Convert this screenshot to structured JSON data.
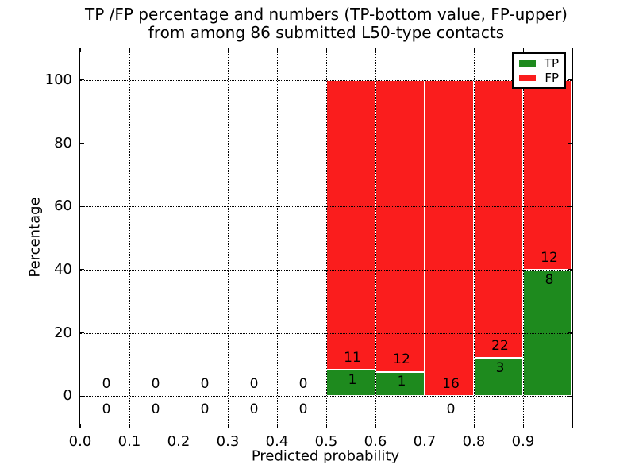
{
  "figure": {
    "title_line1": "TP /FP percentage and numbers (TP-bottom value, FP-upper)",
    "title_line2": "from among 86 submitted L50-type contacts",
    "xlabel": "Predicted probability",
    "ylabel": "Percentage"
  },
  "legend": {
    "entries": [
      {
        "label": "TP",
        "color": "#1e8a1e"
      },
      {
        "label": "FP",
        "color": "#fa1d1d"
      }
    ]
  },
  "colors": {
    "tp_green": "#1e8a1e",
    "fp_red": "#fa1d1d",
    "axis_black": "#000000",
    "background": "#ffffff"
  },
  "chart_data": {
    "type": "bar",
    "stacked": true,
    "title": "TP /FP percentage and numbers (TP-bottom value, FP-upper) from among 86 submitted L50-type contacts",
    "xlabel": "Predicted probability",
    "ylabel": "Percentage",
    "xlim": [
      0.0,
      1.0
    ],
    "ylim": [
      -10,
      110
    ],
    "x_tick_labels": [
      "0.0",
      "0.1",
      "0.2",
      "0.3",
      "0.4",
      "0.5",
      "0.6",
      "0.7",
      "0.8",
      "0.9"
    ],
    "x_tick_values": [
      0.0,
      0.1,
      0.2,
      0.3,
      0.4,
      0.5,
      0.6,
      0.7,
      0.8,
      0.9
    ],
    "y_tick_values": [
      0,
      20,
      40,
      60,
      80,
      100
    ],
    "grid": "dotted",
    "legend_position": "upper right",
    "total_contacts": 86,
    "series": [
      {
        "name": "TP",
        "color": "#1e8a1e"
      },
      {
        "name": "FP",
        "color": "#fa1d1d"
      }
    ],
    "bins": [
      {
        "x_range": [
          0.0,
          0.1
        ],
        "tp_count": 0,
        "fp_count": 0,
        "tp_pct": 0,
        "fp_pct": 0
      },
      {
        "x_range": [
          0.1,
          0.2
        ],
        "tp_count": 0,
        "fp_count": 0,
        "tp_pct": 0,
        "fp_pct": 0
      },
      {
        "x_range": [
          0.2,
          0.3
        ],
        "tp_count": 0,
        "fp_count": 0,
        "tp_pct": 0,
        "fp_pct": 0
      },
      {
        "x_range": [
          0.3,
          0.4
        ],
        "tp_count": 0,
        "fp_count": 0,
        "tp_pct": 0,
        "fp_pct": 0
      },
      {
        "x_range": [
          0.4,
          0.5
        ],
        "tp_count": 0,
        "fp_count": 0,
        "tp_pct": 0,
        "fp_pct": 0
      },
      {
        "x_range": [
          0.5,
          0.6
        ],
        "tp_count": 1,
        "fp_count": 11,
        "tp_pct": 8.33,
        "fp_pct": 91.67
      },
      {
        "x_range": [
          0.6,
          0.7
        ],
        "tp_count": 1,
        "fp_count": 12,
        "tp_pct": 7.69,
        "fp_pct": 92.31
      },
      {
        "x_range": [
          0.7,
          0.8
        ],
        "tp_count": 0,
        "fp_count": 16,
        "tp_pct": 0,
        "fp_pct": 100
      },
      {
        "x_range": [
          0.8,
          0.9
        ],
        "tp_count": 3,
        "fp_count": 22,
        "tp_pct": 12,
        "fp_pct": 88
      },
      {
        "x_range": [
          0.9,
          1.0
        ],
        "tp_count": 8,
        "fp_count": 12,
        "tp_pct": 40,
        "fp_pct": 60
      }
    ]
  }
}
